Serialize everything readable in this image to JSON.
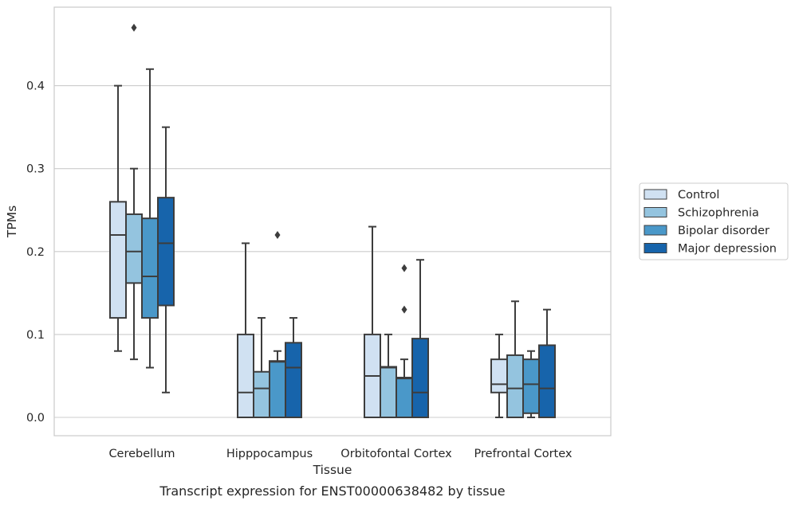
{
  "chart_data": {
    "type": "box",
    "title": "",
    "caption": "Transcript expression for ENST00000638482 by tissue",
    "xlabel": "Tissue",
    "ylabel": "TPMs",
    "ylim": [
      -0.023,
      0.495
    ],
    "yticks": [
      0.0,
      0.1,
      0.2,
      0.3,
      0.4
    ],
    "ytick_labels": [
      "0.0",
      "0.1",
      "0.2",
      "0.3",
      "0.4"
    ],
    "grid": "horizontal",
    "legend_position": "outside-right",
    "categories": [
      "Cerebellum",
      "Hipppocampus",
      "Orbitofontal Cortex",
      "Prefrontal Cortex"
    ],
    "series": [
      {
        "name": "Control",
        "color": "#d0e1f2",
        "boxes": [
          {
            "whisker_low": 0.08,
            "q1": 0.12,
            "median": 0.22,
            "q3": 0.26,
            "whisker_high": 0.4,
            "outliers": []
          },
          {
            "whisker_low": 0.0,
            "q1": 0.0,
            "median": 0.03,
            "q3": 0.1,
            "whisker_high": 0.21,
            "outliers": []
          },
          {
            "whisker_low": 0.0,
            "q1": 0.0,
            "median": 0.05,
            "q3": 0.1,
            "whisker_high": 0.23,
            "outliers": []
          },
          {
            "whisker_low": 0.0,
            "q1": 0.03,
            "median": 0.04,
            "q3": 0.07,
            "whisker_high": 0.1,
            "outliers": []
          }
        ]
      },
      {
        "name": "Schizophrenia",
        "color": "#94c4df",
        "boxes": [
          {
            "whisker_low": 0.07,
            "q1": 0.162,
            "median": 0.2,
            "q3": 0.245,
            "whisker_high": 0.3,
            "outliers": [
              0.47
            ]
          },
          {
            "whisker_low": 0.0,
            "q1": 0.0,
            "median": 0.035,
            "q3": 0.055,
            "whisker_high": 0.12,
            "outliers": []
          },
          {
            "whisker_low": 0.0,
            "q1": 0.0,
            "median": 0.06,
            "q3": 0.061,
            "whisker_high": 0.1,
            "outliers": []
          },
          {
            "whisker_low": 0.0,
            "q1": 0.0,
            "median": 0.035,
            "q3": 0.075,
            "whisker_high": 0.14,
            "outliers": []
          }
        ]
      },
      {
        "name": "Bipolar disorder",
        "color": "#4a98c9",
        "boxes": [
          {
            "whisker_low": 0.06,
            "q1": 0.12,
            "median": 0.17,
            "q3": 0.24,
            "whisker_high": 0.42,
            "outliers": []
          },
          {
            "whisker_low": 0.0,
            "q1": 0.0,
            "median": 0.067,
            "q3": 0.068,
            "whisker_high": 0.08,
            "outliers": [
              0.22
            ]
          },
          {
            "whisker_low": 0.0,
            "q1": 0.0,
            "median": 0.047,
            "q3": 0.048,
            "whisker_high": 0.07,
            "outliers": [
              0.13,
              0.18
            ]
          },
          {
            "whisker_low": 0.0,
            "q1": 0.005,
            "median": 0.04,
            "q3": 0.07,
            "whisker_high": 0.08,
            "outliers": []
          }
        ]
      },
      {
        "name": "Major depression",
        "color": "#1764ab",
        "boxes": [
          {
            "whisker_low": 0.03,
            "q1": 0.135,
            "median": 0.21,
            "q3": 0.265,
            "whisker_high": 0.35,
            "outliers": []
          },
          {
            "whisker_low": 0.0,
            "q1": 0.0,
            "median": 0.06,
            "q3": 0.09,
            "whisker_high": 0.12,
            "outliers": []
          },
          {
            "whisker_low": 0.0,
            "q1": 0.0,
            "median": 0.03,
            "q3": 0.095,
            "whisker_high": 0.19,
            "outliers": []
          },
          {
            "whisker_low": 0.0,
            "q1": 0.0,
            "median": 0.035,
            "q3": 0.087,
            "whisker_high": 0.13,
            "outliers": []
          }
        ]
      }
    ]
  }
}
